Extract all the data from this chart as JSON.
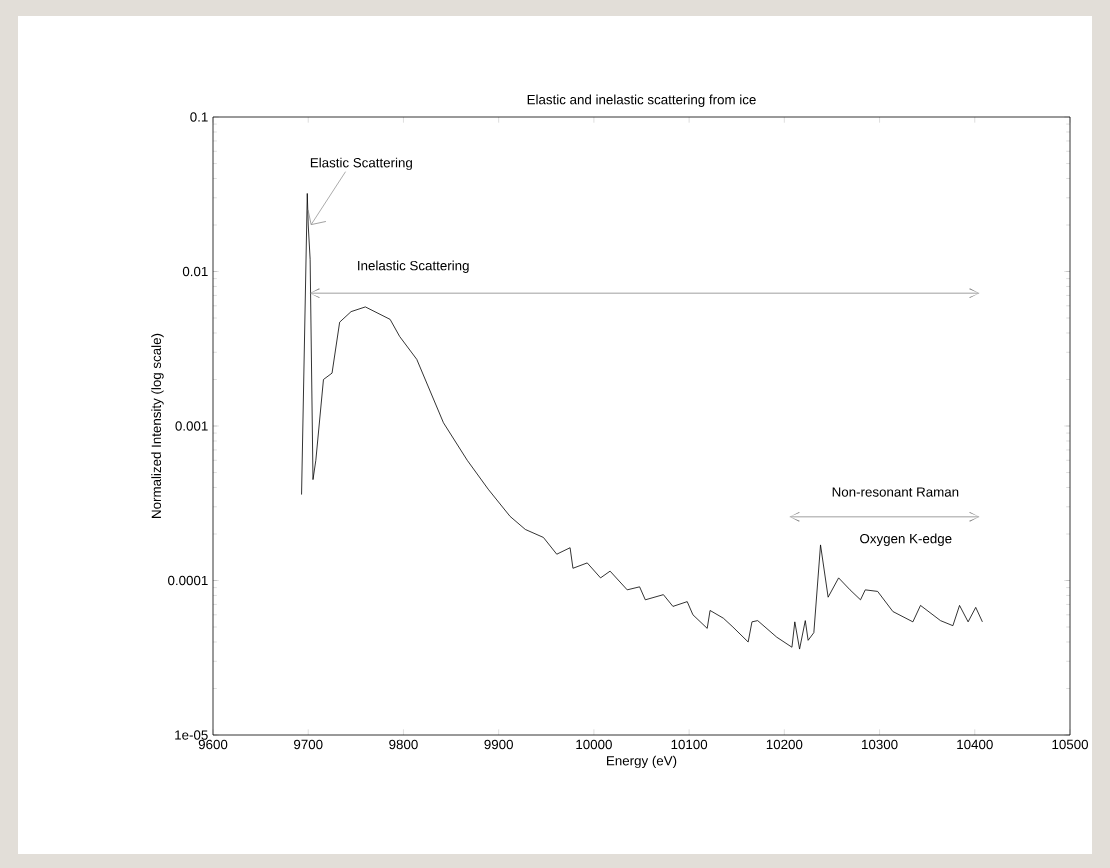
{
  "chart_data": {
    "type": "line",
    "title": "Elastic and inelastic scattering from ice",
    "xlabel": "Energy (eV)",
    "ylabel": "Normalized Intensity (log scale)",
    "log": "y",
    "grid": false,
    "marker": "none",
    "line_style": "solid",
    "xlim": [
      9600,
      10500
    ],
    "ylim": [
      1e-05,
      0.1
    ],
    "xticks": [
      9600,
      9700,
      9800,
      9900,
      10000,
      10100,
      10200,
      10300,
      10400,
      10500
    ],
    "yticks": [
      {
        "value": 1e-05,
        "label": "1e-05"
      },
      0.0001,
      0.001,
      0.01,
      0.1
    ],
    "series": [
      {
        "color": "#000000",
        "x": [
          9693,
          9699,
          9700,
          9702,
          9705,
          9708,
          9716,
          9725,
          9733,
          9745,
          9760,
          9786,
          9796,
          9814,
          9842,
          9867,
          9889,
          9912,
          9928,
          9947,
          9961,
          9975,
          9978,
          9993,
          10007,
          10017,
          10035,
          10048,
          10054,
          10073,
          10083,
          10098,
          10104,
          10119,
          10122,
          10136,
          10146,
          10162,
          10166,
          10172,
          10192,
          10208,
          10211,
          10216,
          10222,
          10225,
          10231,
          10238,
          10246,
          10257,
          10269,
          10280,
          10285,
          10298,
          10314,
          10335,
          10343,
          10364,
          10377,
          10384,
          10393,
          10401,
          10408
        ],
        "values": [
          0.00036,
          0.032,
          0.02,
          0.012,
          0.00045,
          0.0006,
          0.002,
          0.0022,
          0.0047,
          0.0055,
          0.0059,
          0.0049,
          0.0038,
          0.0027,
          0.00105,
          0.0006,
          0.00039,
          0.00026,
          0.000214,
          0.00019,
          0.000148,
          0.000163,
          0.00012,
          0.00013,
          0.000104,
          0.000115,
          8.7e-05,
          9.1e-05,
          7.5e-05,
          8.1e-05,
          6.8e-05,
          7.3e-05,
          6e-05,
          4.9e-05,
          6.4e-05,
          5.7e-05,
          5e-05,
          4e-05,
          5.4e-05,
          5.5e-05,
          4.3e-05,
          3.7e-05,
          5.4e-05,
          3.6e-05,
          5.5e-05,
          4.1e-05,
          4.6e-05,
          0.00017,
          7.8e-05,
          0.000104,
          8.7e-05,
          7.5e-05,
          8.7e-05,
          8.5e-05,
          6.3e-05,
          5.4e-05,
          6.9e-05,
          5.5e-05,
          5.1e-05,
          6.9e-05,
          5.4e-05,
          6.7e-05,
          5.4e-05
        ]
      }
    ],
    "annotations": [
      {
        "text": "Elastic Scattering",
        "x": 9700,
        "y": 0.02
      },
      "Inelastic Scattering",
      "Non-resonant Raman",
      {
        "text": "Oxygen K-edge",
        "x": 10238,
        "y": 0.00017
      }
    ]
  }
}
